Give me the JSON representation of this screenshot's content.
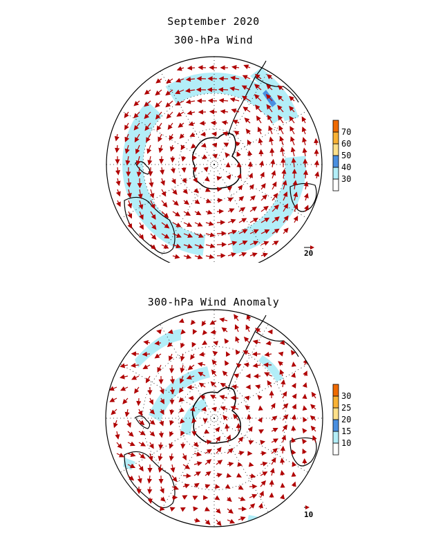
{
  "titles": {
    "main": "September 2020",
    "top_panel": "300-hPa Wind",
    "bottom_panel": "300-hPa Wind Anomaly"
  },
  "colors": {
    "arrow": "#b00000",
    "coast": "#000000",
    "grid": "#000000"
  },
  "top_panel": {
    "reference_vector_label": "20",
    "colorbar": [
      {
        "label": "",
        "color": "#ffffff"
      },
      {
        "label": "30",
        "color": "#b3eef8"
      },
      {
        "label": "40",
        "color": "#4a8fe0"
      },
      {
        "label": "50",
        "color": "#fde08a"
      },
      {
        "label": "60",
        "color": "#f9b234"
      },
      {
        "label": "70",
        "color": "#ef6a00"
      }
    ]
  },
  "bottom_panel": {
    "reference_vector_label": "10",
    "colorbar": [
      {
        "label": "",
        "color": "#ffffff"
      },
      {
        "label": "10",
        "color": "#b3eef8"
      },
      {
        "label": "15",
        "color": "#4a8fe0"
      },
      {
        "label": "20",
        "color": "#fde08a"
      },
      {
        "label": "25",
        "color": "#f9b234"
      },
      {
        "label": "30",
        "color": "#ef6a00"
      }
    ]
  }
}
